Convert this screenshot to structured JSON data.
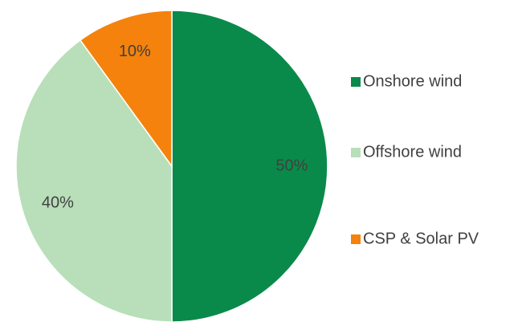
{
  "chart_data": {
    "type": "pie",
    "categories": [
      "Onshore wind",
      "Offshore wind",
      "CSP & Solar PV"
    ],
    "values": [
      50,
      40,
      10
    ],
    "value_labels": [
      "50%",
      "40%",
      "10%"
    ],
    "colors": [
      "#0a8a4a",
      "#b8dfb9",
      "#f5820d"
    ],
    "legend": "right"
  }
}
